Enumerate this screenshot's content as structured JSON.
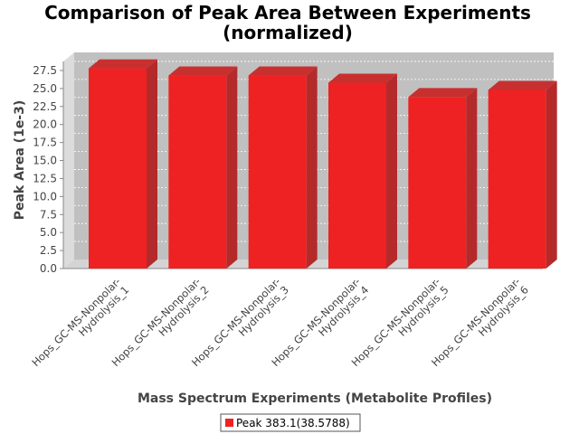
{
  "chart_data": {
    "type": "bar",
    "title_lines": [
      "Comparison of Peak Area Between Experiments",
      "(normalized)"
    ],
    "xlabel": "Mass Spectrum Experiments (Metabolite Profiles)",
    "ylabel": "Peak Area (1e-3)",
    "categories": [
      [
        "Hops_GC-MS-Nonpolar-",
        "Hydrolysis_1"
      ],
      [
        "Hops_GC-MS-Nonpolar-",
        "Hydrolysis_2"
      ],
      [
        "Hops_GC-MS-Nonpolar-",
        "Hydrolysis_3"
      ],
      [
        "Hops_GC-MS-Nonpolar-",
        "Hydrolysis_4"
      ],
      [
        "Hops_GC-MS-Nonpolar-",
        "Hydrolysis_5"
      ],
      [
        "Hops_GC-MS-Nonpolar-",
        "Hydrolysis_6"
      ]
    ],
    "series": [
      {
        "name": "Peak 383.1(38.5788)",
        "color": "#ee2222",
        "values": [
          27.8,
          26.8,
          26.8,
          25.8,
          23.8,
          24.8
        ]
      }
    ],
    "ylim": [
      0,
      28.75
    ],
    "yticks": [
      "0.0",
      "2.5",
      "5.0",
      "7.5",
      "10.0",
      "12.5",
      "15.0",
      "17.5",
      "20.0",
      "22.5",
      "25.0",
      "27.5"
    ],
    "ytick_step": 2.5,
    "grid": true,
    "legend_position": "bottom",
    "plot_background": "#c0c0c0"
  }
}
